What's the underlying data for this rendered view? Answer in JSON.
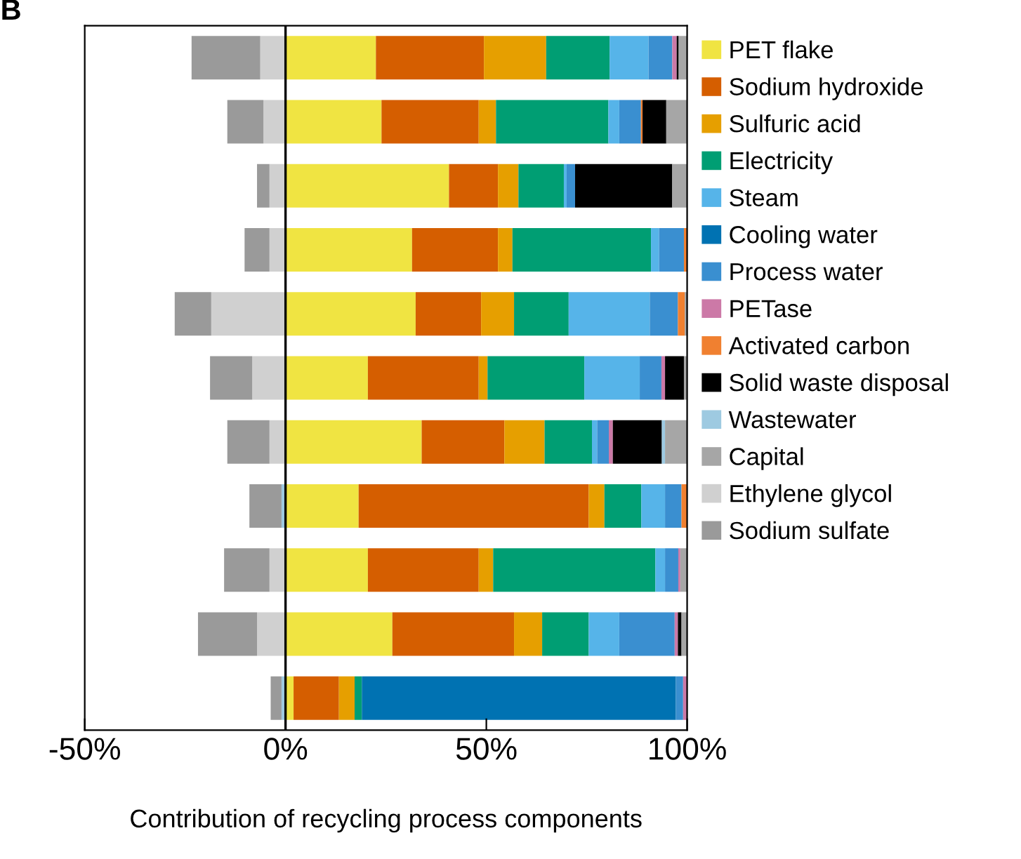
{
  "chart_data": {
    "type": "bar",
    "orientation": "horizontal",
    "stacked": true,
    "title": "B",
    "xlabel": "Contribution of recycling process components",
    "categories": [
      null,
      null,
      null,
      null,
      null,
      null,
      null,
      null,
      null,
      null,
      null
    ],
    "xlim": [
      -50,
      100
    ],
    "xticks": [
      {
        "value": -50,
        "label": "-50%"
      },
      {
        "value": 0,
        "label": "0%"
      },
      {
        "value": 50,
        "label": "50%"
      },
      {
        "value": 100,
        "label": "100%"
      }
    ],
    "grid": false,
    "legend": "right",
    "tick_labels": "x",
    "ref_lines": [
      {
        "axis": "x",
        "value": 0,
        "color": "#000000"
      }
    ],
    "series": [
      {
        "name": "PET flake",
        "color": "#f0e442",
        "values": [
          22.5,
          23.9,
          40.7,
          31.5,
          32.4,
          20.5,
          33.9,
          18.2,
          20.5,
          26.6,
          2.0
        ]
      },
      {
        "name": "Sodium hydroxide",
        "color": "#d55e00",
        "values": [
          26.9,
          24.2,
          12.2,
          21.4,
          16.3,
          27.6,
          20.6,
          57.3,
          27.6,
          30.3,
          11.3
        ]
      },
      {
        "name": "Sulfuric acid",
        "color": "#e69f00",
        "values": [
          15.5,
          4.3,
          5.1,
          3.6,
          8.2,
          2.2,
          10.0,
          3.9,
          3.6,
          7.0,
          3.9
        ]
      },
      {
        "name": "Electricity",
        "color": "#009e73",
        "values": [
          15.8,
          28.0,
          11.3,
          34.5,
          13.6,
          24.1,
          11.8,
          9.2,
          40.4,
          11.6,
          1.8
        ]
      },
      {
        "name": "Steam",
        "color": "#56b4e9",
        "values": [
          9.7,
          2.7,
          0.7,
          2.0,
          20.2,
          13.8,
          1.3,
          5.9,
          2.4,
          7.6,
          null
        ]
      },
      {
        "name": "Cooling water",
        "color": "#0072b2",
        "values": [
          null,
          null,
          null,
          null,
          null,
          null,
          null,
          null,
          null,
          null,
          78.2
        ]
      },
      {
        "name": "Process water",
        "color": "#3a8fd0",
        "values": [
          5.9,
          5.4,
          2.1,
          6.2,
          7.0,
          5.4,
          2.9,
          4.1,
          3.3,
          13.8,
          1.8
        ]
      },
      {
        "name": "PETase",
        "color": "#cc79a7",
        "values": [
          1.1,
          null,
          null,
          null,
          null,
          0.9,
          1.0,
          null,
          0.5,
          0.8,
          1.0
        ]
      },
      {
        "name": "Activated carbon",
        "color": "#f08030",
        "values": [
          null,
          0.4,
          null,
          0.8,
          1.7,
          null,
          null,
          1.4,
          null,
          null,
          null
        ]
      },
      {
        "name": "Solid waste disposal",
        "color": "#000000",
        "values": [
          0.5,
          5.9,
          24.2,
          null,
          null,
          4.7,
          12.2,
          null,
          null,
          0.9,
          null
        ]
      },
      {
        "name": "Wastewater",
        "color": "#9ecae1",
        "values": [
          null,
          null,
          null,
          null,
          null,
          null,
          0.8,
          -1.0,
          null,
          null,
          -1.0
        ]
      },
      {
        "name": "Capital",
        "color": "#a6a6a6",
        "values": [
          2.1,
          5.2,
          3.7,
          null,
          0.6,
          0.8,
          5.5,
          null,
          1.7,
          1.4,
          null
        ]
      },
      {
        "name": "Ethylene glycol",
        "color": "#d0d0d0",
        "values": [
          -6.3,
          -5.5,
          -4.0,
          -4.0,
          -18.5,
          -8.3,
          -4.0,
          null,
          -4.0,
          -7.1,
          null
        ]
      },
      {
        "name": "Sodium sulfate",
        "color": "#9a9a9a",
        "values": [
          -17.1,
          -9.0,
          -3.1,
          -6.2,
          -9.1,
          -10.5,
          -10.5,
          -8.0,
          -11.3,
          -14.7,
          -2.7
        ]
      }
    ]
  }
}
